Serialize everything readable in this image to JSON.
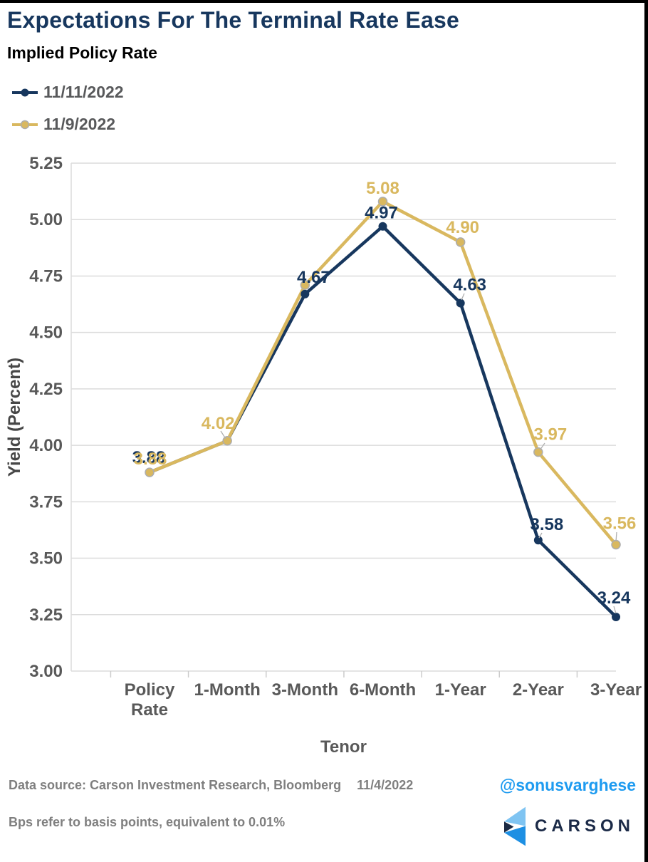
{
  "header": {
    "title": "Expectations For The Terminal Rate Ease",
    "subtitle": "Implied Policy Rate"
  },
  "legend": {
    "items": [
      {
        "label": "11/11/2022",
        "color": "#17375e",
        "marker_outline": null
      },
      {
        "label": "11/9/2022",
        "color": "#d9b85f",
        "marker_outline": "#adadad"
      }
    ]
  },
  "chart_data": {
    "type": "line",
    "title": "Expectations For The Terminal Rate Ease",
    "subtitle": "Implied Policy Rate",
    "xlabel": "Tenor",
    "ylabel": "Yield (Percent)",
    "categories": [
      "Policy Rate",
      "1-Month",
      "3-Month",
      "6-Month",
      "1-Year",
      "2-Year",
      "3-Year"
    ],
    "yticks": [
      "5.25",
      "5.00",
      "4.75",
      "4.50",
      "4.25",
      "4.00",
      "3.75",
      "3.50",
      "3.25",
      "3.00"
    ],
    "ylim": [
      3.0,
      5.25
    ],
    "grid": true,
    "legend_position": "top-left",
    "series": [
      {
        "name": "11/11/2022",
        "color": "#17375e",
        "values": [
          3.88,
          4.02,
          4.67,
          4.97,
          4.63,
          3.58,
          3.24
        ],
        "labels": [
          "3.88",
          null,
          "4.67",
          "4.97",
          "4.63",
          "3.58",
          "3.24"
        ]
      },
      {
        "name": "11/9/2022",
        "color": "#d9b85f",
        "values": [
          3.88,
          4.02,
          4.71,
          5.08,
          4.9,
          3.97,
          3.56
        ],
        "labels": [
          "3.88",
          "4.02",
          null,
          "5.08",
          "4.90",
          "3.97",
          "3.56"
        ]
      }
    ]
  },
  "footer": {
    "source": "Data source: Carson Investment Research, Bloomberg",
    "date": "11/4/2022",
    "handle": "@sonusvarghese",
    "note": "Bps refer to basis points, equivalent to 0.01%",
    "brand": "CARSON"
  },
  "colors": {
    "title_navy": "#17375e",
    "series_navy": "#17375e",
    "series_gold": "#d9b85f",
    "grid_gray": "#dcdcdc",
    "axis_text": "#595959",
    "leader_gray": "#b0b0b0",
    "footer_gray": "#7f7f7f",
    "handle_blue": "#1e9bf0",
    "logo_light_blue": "#7fc4f2",
    "logo_blue": "#1d8fe3",
    "logo_navy": "#1b2a44"
  }
}
